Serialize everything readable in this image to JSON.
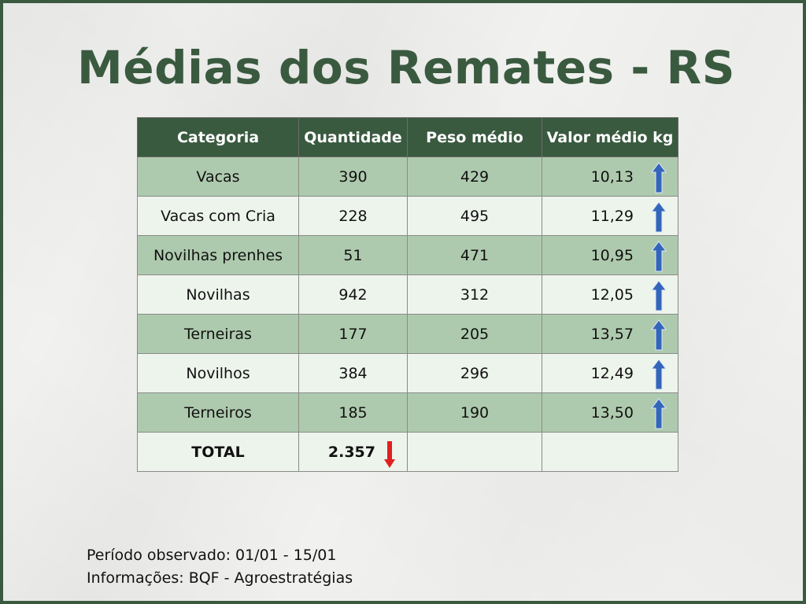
{
  "title": "Médias dos Remates - RS",
  "table": {
    "headers": [
      "Categoria",
      "Quantidade",
      "Peso médio",
      "Valor médio kg"
    ],
    "rows": [
      {
        "categoria": "Vacas",
        "quantidade": "390",
        "peso": "429",
        "valor": "10,13",
        "trend": "up"
      },
      {
        "categoria": "Vacas com Cria",
        "quantidade": "228",
        "peso": "495",
        "valor": "11,29",
        "trend": "up"
      },
      {
        "categoria": "Novilhas prenhes",
        "quantidade": "51",
        "peso": "471",
        "valor": "10,95",
        "trend": "up"
      },
      {
        "categoria": "Novilhas",
        "quantidade": "942",
        "peso": "312",
        "valor": "12,05",
        "trend": "up"
      },
      {
        "categoria": "Terneiras",
        "quantidade": "177",
        "peso": "205",
        "valor": "13,57",
        "trend": "up"
      },
      {
        "categoria": "Novilhos",
        "quantidade": "384",
        "peso": "296",
        "valor": "12,49",
        "trend": "up"
      },
      {
        "categoria": "Terneiros",
        "quantidade": "185",
        "peso": "190",
        "valor": "13,50",
        "trend": "up"
      }
    ],
    "total": {
      "label": "TOTAL",
      "quantidade": "2.357",
      "trend": "down"
    }
  },
  "footer": {
    "periodo": "Período observado: 01/01 - 15/01",
    "informacoes": "Informações: BQF - Agroestratégias"
  },
  "colors": {
    "accent": "#3a5a40",
    "row_dark": "#aecaae",
    "row_light": "#edf4ec",
    "arrow_up": "#3366bb",
    "arrow_down": "#e02020"
  }
}
